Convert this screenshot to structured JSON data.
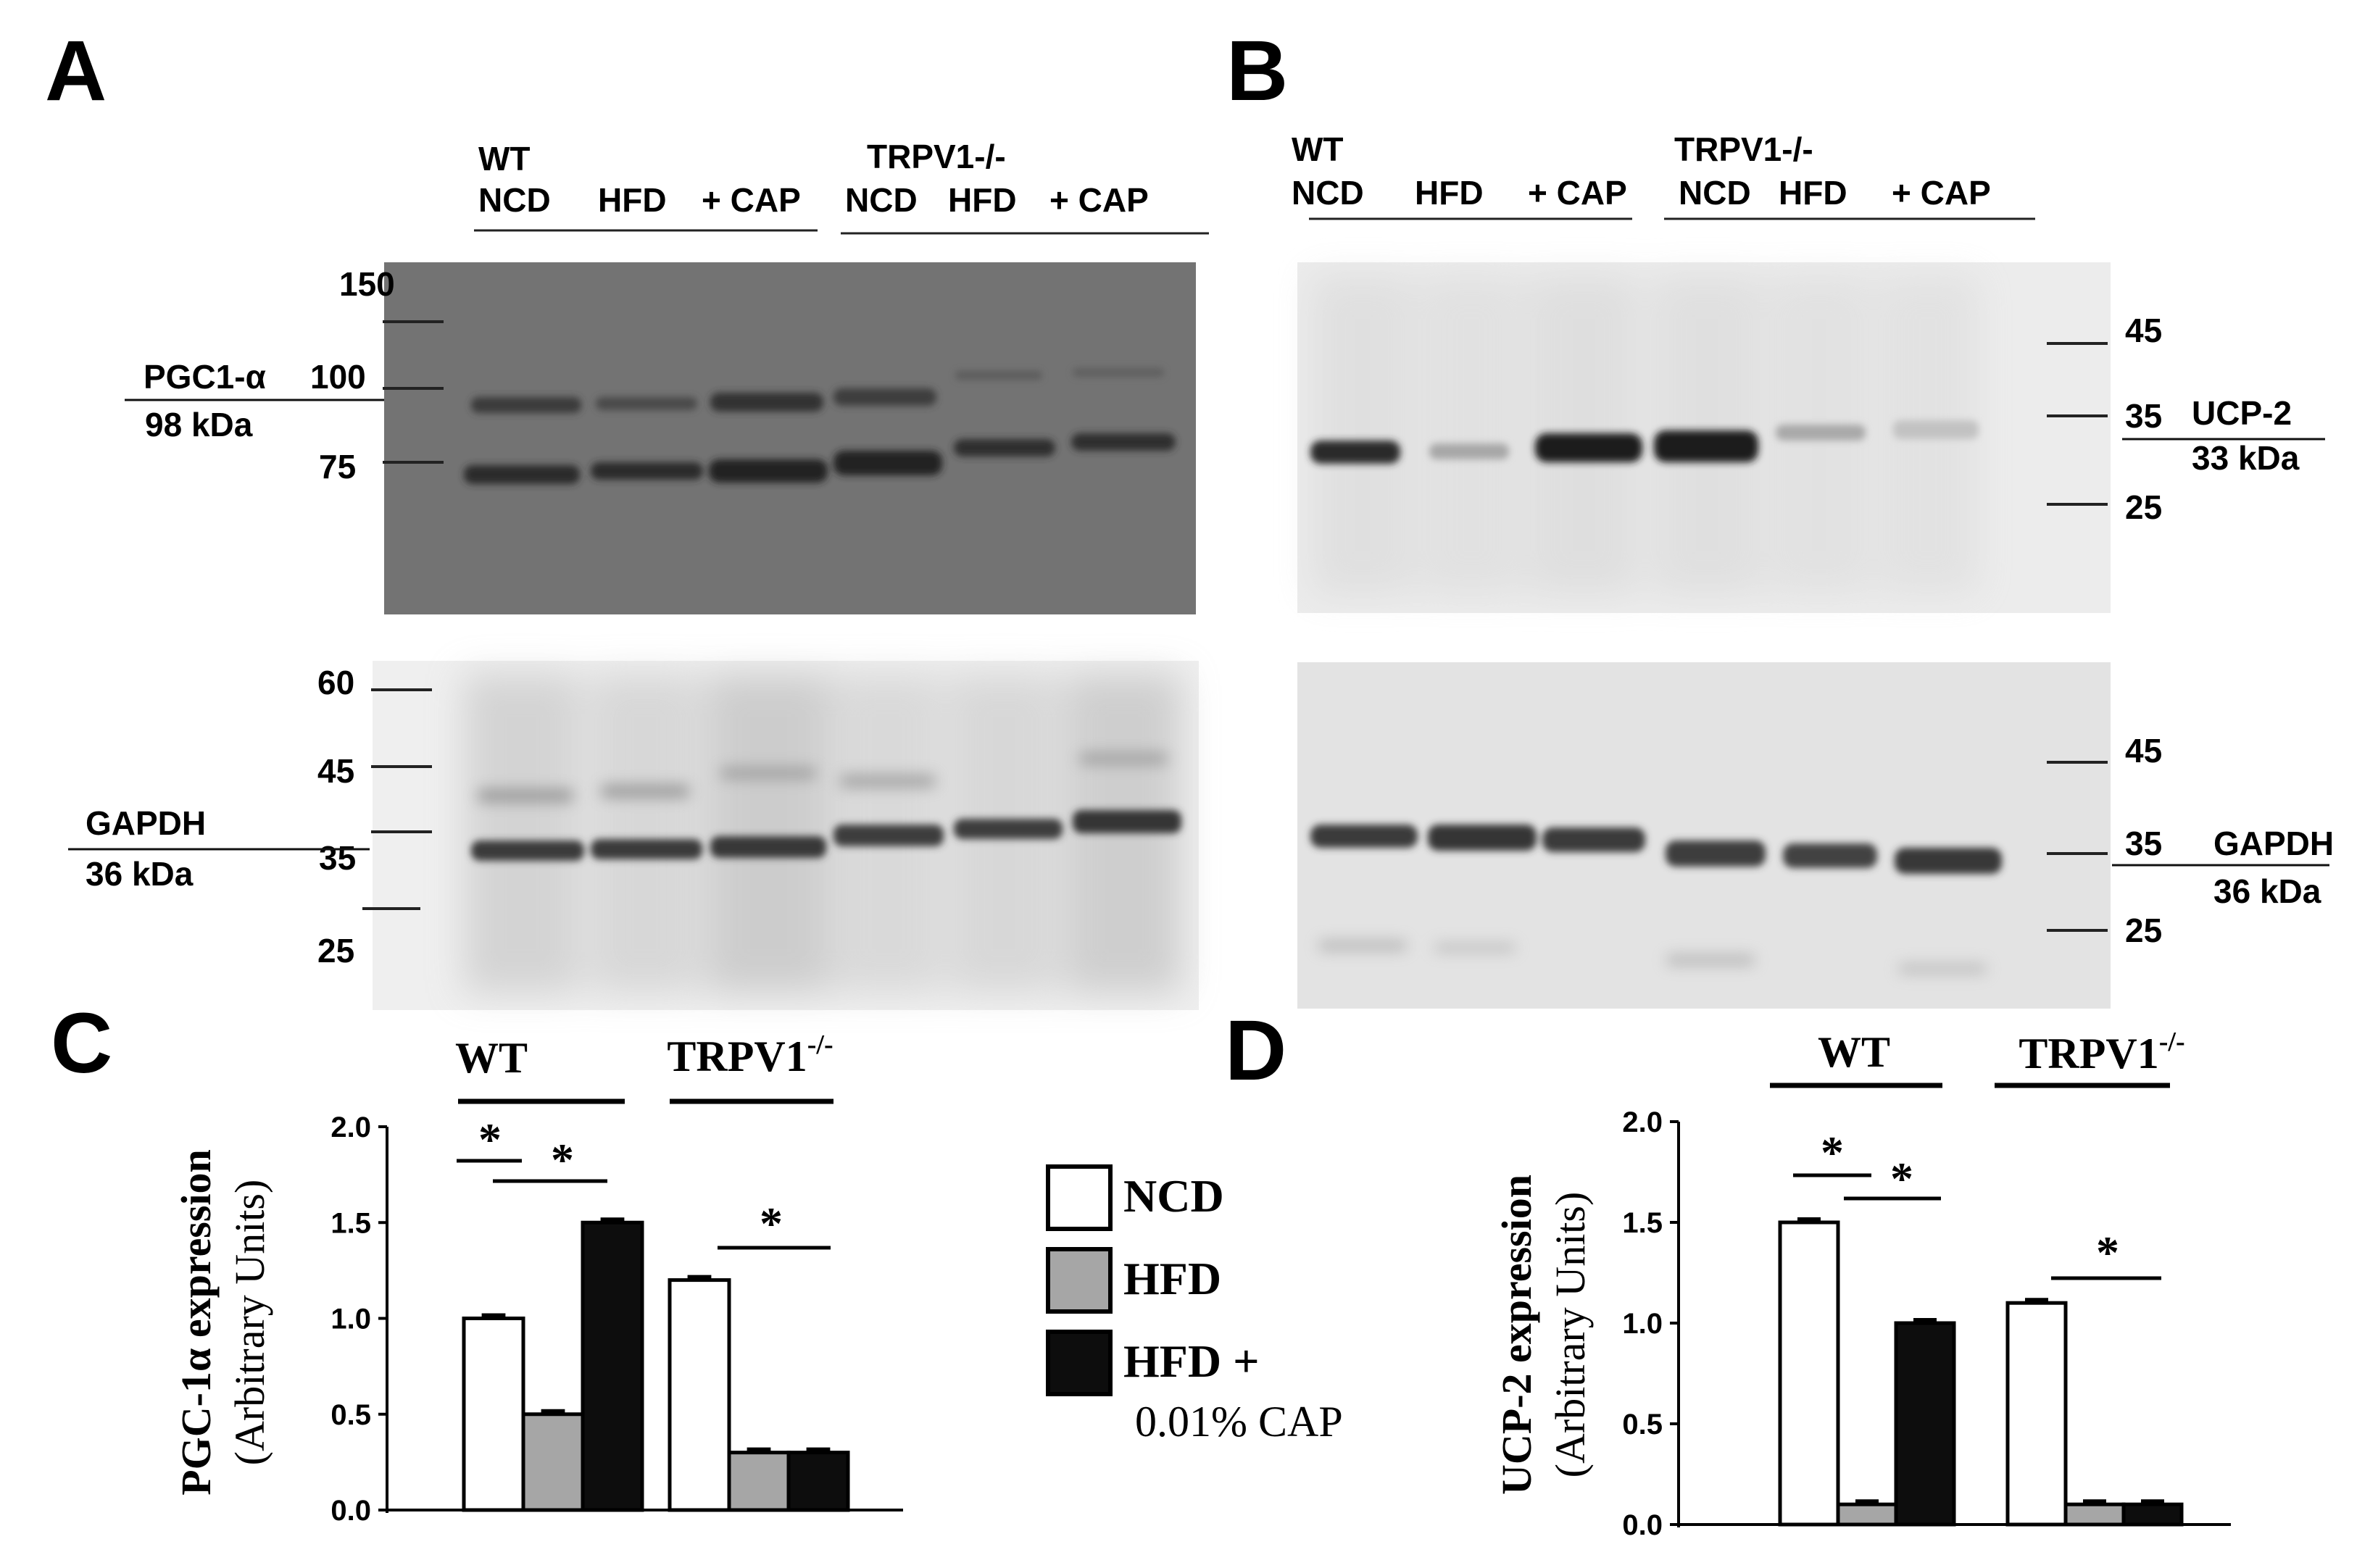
{
  "panels": {
    "A": {
      "letter": "A",
      "header": {
        "wt": "WT",
        "trpv1": "TRPV1-/-",
        "lanes": [
          "NCD",
          "HFD",
          "+ CAP",
          "NCD",
          "HFD",
          "+ CAP"
        ]
      },
      "top_blot": {
        "ladder": [
          "150",
          "100",
          "75"
        ],
        "target_name": "PGC1-α",
        "target_size": "98 kDa"
      },
      "bottom_blot": {
        "ladder": [
          "60",
          "45",
          "35",
          "25"
        ],
        "target_name": "GAPDH",
        "target_size": "36 kDa"
      }
    },
    "B": {
      "letter": "B",
      "header": {
        "wt": "WT",
        "trpv1": "TRPV1-/-",
        "lanes": [
          "NCD",
          "HFD",
          "+ CAP",
          "NCD",
          "HFD",
          "+ CAP"
        ]
      },
      "top_blot": {
        "ladder": [
          "45",
          "35",
          "25"
        ],
        "target_name": "UCP-2",
        "target_size": "33 kDa"
      },
      "bottom_blot": {
        "ladder": [
          "45",
          "35",
          "25"
        ],
        "target_name": "GAPDH",
        "target_size": "36 kDa"
      }
    },
    "C": {
      "letter": "C"
    },
    "D": {
      "letter": "D"
    }
  },
  "legend": {
    "entries": [
      {
        "label": "NCD",
        "color": "#ffffff"
      },
      {
        "label": "HFD",
        "color": "#a6a6a6"
      },
      {
        "label": "HFD +",
        "label2": "0.01% CAP",
        "color": "#0d0d0d"
      }
    ]
  },
  "chart_data": [
    {
      "type": "bar",
      "panel": "C",
      "groups": [
        "WT",
        "TRPV1-/-"
      ],
      "categories": [
        "NCD",
        "HFD",
        "HFD + 0.01% CAP"
      ],
      "series": [
        {
          "group": "WT",
          "values": [
            1.0,
            0.5,
            1.5
          ]
        },
        {
          "group": "TRPV1-/-",
          "values": [
            1.2,
            0.3,
            0.3
          ]
        }
      ],
      "ylabel": "PGC-1α expression",
      "ylabel2": "(Arbitrary Units)",
      "ylim": [
        0,
        2.0
      ],
      "yticks": [
        "0.0",
        "0.5",
        "1.0",
        "1.5",
        "2.0"
      ],
      "significance": [
        "*",
        "*",
        "*"
      ]
    },
    {
      "type": "bar",
      "panel": "D",
      "groups": [
        "WT",
        "TRPV1-/-"
      ],
      "categories": [
        "NCD",
        "HFD",
        "HFD + 0.01% CAP"
      ],
      "series": [
        {
          "group": "WT",
          "values": [
            1.5,
            0.1,
            1.0
          ]
        },
        {
          "group": "TRPV1-/-",
          "values": [
            1.1,
            0.1,
            0.1
          ]
        }
      ],
      "ylabel": "UCP-2 expression",
      "ylabel2": "(Arbitrary Units)",
      "ylim": [
        0,
        2.0
      ],
      "yticks": [
        "0.0",
        "0.5",
        "1.0",
        "1.5",
        "2.0"
      ],
      "significance": [
        "*",
        "*",
        "*"
      ]
    }
  ]
}
